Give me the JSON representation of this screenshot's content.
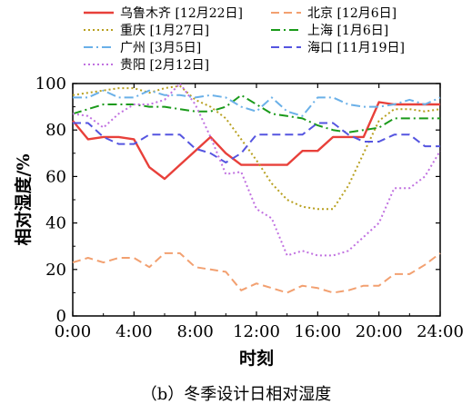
{
  "caption": "（b）冬季设计日相对湿度",
  "chart_data": {
    "type": "line",
    "title": "",
    "xlabel": "时刻",
    "ylabel": "相对湿度/%",
    "xlim": [
      0,
      24
    ],
    "ylim": [
      0,
      100
    ],
    "x_ticks": [
      0,
      4,
      8,
      12,
      16,
      20,
      24
    ],
    "x_tick_labels": [
      "0:00",
      "4:00",
      "8:00",
      "12:00",
      "16:00",
      "20:00",
      "24:00"
    ],
    "y_ticks": [
      0,
      20,
      40,
      60,
      80,
      100
    ],
    "y_tick_labels": [
      "0",
      "20",
      "40",
      "60",
      "80",
      "100"
    ],
    "grid": false,
    "legend_position": "top, above plot, two columns",
    "x": [
      0,
      1,
      2,
      3,
      4,
      5,
      6,
      7,
      8,
      9,
      10,
      11,
      12,
      13,
      14,
      15,
      16,
      17,
      18,
      19,
      20,
      21,
      22,
      23,
      24
    ],
    "series": [
      {
        "name": "乌鲁木齐 [12月22日]",
        "color": "#e8403a",
        "dash": "solid",
        "values": [
          84,
          76,
          77,
          77,
          76,
          64,
          59,
          65,
          71,
          77,
          70,
          65,
          65,
          65,
          65,
          71,
          71,
          77,
          77,
          77,
          92,
          91,
          91,
          91,
          91
        ]
      },
      {
        "name": "北京 [12月6日]",
        "color": "#f2a070",
        "dash": "dashed",
        "values": [
          23,
          25,
          23,
          25,
          25,
          21,
          27,
          27,
          21,
          20,
          19,
          11,
          14,
          12,
          10,
          13,
          12,
          10,
          11,
          13,
          13,
          18,
          18,
          22,
          27
        ]
      },
      {
        "name": "重庆 [1月27日]",
        "color": "#b8a020",
        "dash": "dotted",
        "values": [
          95,
          96,
          97,
          98,
          98,
          96,
          98,
          99,
          93,
          90,
          85,
          76,
          67,
          57,
          50,
          47,
          46,
          46,
          56,
          70,
          84,
          89,
          89,
          88,
          89
        ]
      },
      {
        "name": "上海 [1月6日]",
        "color": "#1a9a1a",
        "dash": "dashdot",
        "values": [
          87,
          89,
          91,
          91,
          91,
          90,
          90,
          89,
          88,
          88,
          90,
          95,
          91,
          87,
          86,
          85,
          82,
          80,
          79,
          80,
          81,
          85,
          85,
          85,
          85
        ]
      },
      {
        "name": "广州 [3月5日]",
        "color": "#6ab0e8",
        "dash": "dashdot",
        "values": [
          94,
          94,
          97,
          94,
          94,
          97,
          95,
          95,
          94,
          95,
          94,
          90,
          88,
          94,
          88,
          86,
          94,
          94,
          91,
          90,
          90,
          91,
          93,
          91,
          94
        ]
      },
      {
        "name": "海口 [11月19日]",
        "color": "#5555e0",
        "dash": "dashed",
        "values": [
          83,
          83,
          77,
          74,
          74,
          78,
          78,
          78,
          72,
          70,
          66,
          70,
          78,
          78,
          78,
          78,
          83,
          83,
          78,
          75,
          75,
          78,
          78,
          73,
          73
        ]
      },
      {
        "name": "贵阳 [2月12日]",
        "color": "#c070e0",
        "dash": "dotted",
        "values": [
          87,
          86,
          81,
          87,
          91,
          91,
          93,
          100,
          91,
          77,
          61,
          62,
          46,
          42,
          26,
          28,
          26,
          26,
          28,
          34,
          40,
          55,
          55,
          60,
          71
        ]
      }
    ]
  }
}
